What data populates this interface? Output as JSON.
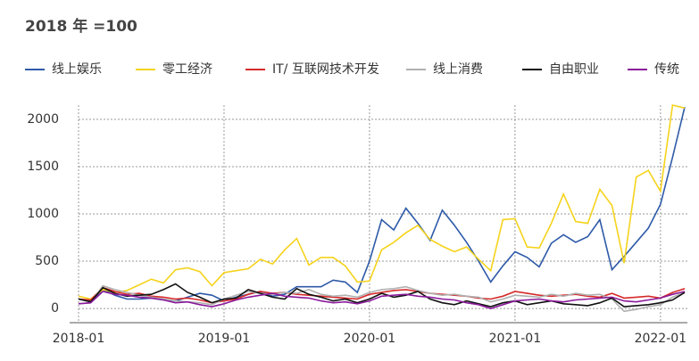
{
  "chart_data": {
    "type": "line",
    "title": "2018 年 =100",
    "categories": [
      "2018-01",
      null,
      null,
      null,
      null,
      null,
      null,
      null,
      null,
      null,
      null,
      null,
      "2019-01",
      null,
      null,
      null,
      null,
      null,
      null,
      null,
      null,
      null,
      null,
      null,
      "2020-01",
      null,
      null,
      null,
      null,
      null,
      null,
      null,
      null,
      null,
      null,
      null,
      "2021-01",
      null,
      null,
      null,
      null,
      null,
      null,
      null,
      null,
      null,
      null,
      null,
      "2022-01",
      null,
      null
    ],
    "series": [
      {
        "name": "线上娱乐",
        "color": "#2e5aa8",
        "values": [
          100,
          80,
          200,
          140,
          100,
          100,
          110,
          90,
          80,
          120,
          160,
          140,
          80,
          120,
          150,
          180,
          130,
          150,
          230,
          230,
          230,
          300,
          280,
          170,
          500,
          940,
          830,
          1060,
          900,
          720,
          1040,
          880,
          700,
          500,
          280,
          450,
          600,
          540,
          440,
          690,
          780,
          700,
          760,
          940,
          410,
          550,
          700,
          850,
          1100,
          1600,
          2130
        ]
      },
      {
        "name": "零工经济",
        "color": "#f5d31c",
        "values": [
          130,
          100,
          200,
          170,
          190,
          250,
          310,
          270,
          410,
          430,
          390,
          240,
          380,
          400,
          420,
          520,
          470,
          620,
          740,
          460,
          540,
          540,
          450,
          280,
          290,
          620,
          700,
          800,
          880,
          730,
          660,
          600,
          650,
          520,
          400,
          940,
          950,
          650,
          640,
          900,
          1210,
          920,
          900,
          1260,
          1090,
          480,
          1390,
          1460,
          1240,
          2150,
          2120
        ]
      },
      {
        "name": "IT/ 互联网技术开发",
        "color": "#d62a2a",
        "values": [
          100,
          90,
          220,
          180,
          150,
          160,
          130,
          120,
          100,
          110,
          90,
          60,
          80,
          100,
          150,
          180,
          160,
          170,
          150,
          140,
          130,
          120,
          110,
          100,
          150,
          170,
          190,
          200,
          180,
          160,
          150,
          140,
          130,
          110,
          100,
          130,
          180,
          160,
          140,
          130,
          140,
          150,
          130,
          120,
          160,
          110,
          120,
          130,
          110,
          170,
          210
        ]
      },
      {
        "name": "线上消费",
        "color": "#b0b0b0",
        "values": [
          50,
          60,
          240,
          200,
          170,
          140,
          120,
          100,
          80,
          70,
          60,
          40,
          100,
          140,
          180,
          160,
          150,
          170,
          160,
          200,
          150,
          130,
          140,
          120,
          170,
          200,
          210,
          230,
          190,
          160,
          140,
          150,
          130,
          120,
          70,
          100,
          140,
          130,
          120,
          150,
          130,
          160,
          140,
          150,
          100,
          -30,
          -10,
          20,
          40,
          120,
          170
        ]
      },
      {
        "name": "自由职业",
        "color": "#111111",
        "values": [
          100,
          70,
          220,
          160,
          130,
          140,
          150,
          200,
          260,
          170,
          120,
          60,
          100,
          110,
          200,
          160,
          120,
          100,
          210,
          150,
          120,
          80,
          100,
          60,
          100,
          160,
          120,
          140,
          180,
          100,
          60,
          40,
          80,
          50,
          20,
          60,
          80,
          40,
          60,
          80,
          50,
          40,
          30,
          60,
          110,
          20,
          30,
          40,
          60,
          90,
          170
        ]
      },
      {
        "name": "传统",
        "color": "#8b1a9b",
        "values": [
          50,
          60,
          180,
          150,
          140,
          120,
          110,
          90,
          60,
          70,
          40,
          20,
          50,
          90,
          120,
          140,
          160,
          130,
          120,
          110,
          80,
          60,
          70,
          50,
          80,
          130,
          140,
          150,
          130,
          120,
          100,
          90,
          60,
          40,
          0,
          40,
          80,
          90,
          100,
          80,
          70,
          90,
          100,
          110,
          120,
          80,
          70,
          90,
          110,
          150,
          180
        ]
      }
    ],
    "ylim": [
      -150,
      2150
    ],
    "yticks": [
      0,
      500,
      1000,
      1500,
      2000
    ],
    "grid": true
  }
}
